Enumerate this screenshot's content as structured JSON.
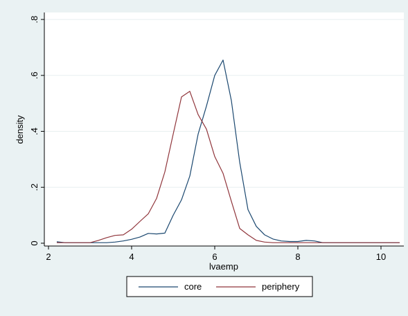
{
  "chart_data": {
    "type": "line",
    "title": "",
    "xlabel": "lvaemp",
    "ylabel": "density",
    "xlim": [
      1.9,
      10.55
    ],
    "ylim": [
      -0.01,
      0.825
    ],
    "xticks": [
      2,
      4,
      6,
      8,
      10
    ],
    "xtick_labels": [
      "2",
      "4",
      "6",
      "8",
      "10"
    ],
    "yticks": [
      0,
      0.2,
      0.4,
      0.6,
      0.8
    ],
    "ytick_labels": [
      "0",
      ".2",
      ".4",
      ".6",
      ".8"
    ],
    "grid": "horizontal",
    "legend_position": "bottom",
    "colors": {
      "background": "#eaf2f3",
      "plot_area": "#ffffff",
      "grid": "#e8eff0"
    },
    "series": [
      {
        "name": "core",
        "color": "#1a476f",
        "x": [
          2.2,
          2.4,
          2.6,
          2.8,
          3.0,
          3.2,
          3.4,
          3.6,
          3.8,
          4.0,
          4.2,
          4.4,
          4.6,
          4.8,
          5.0,
          5.2,
          5.4,
          5.6,
          5.8,
          6.0,
          6.2,
          6.4,
          6.6,
          6.8,
          7.0,
          7.2,
          7.4,
          7.6,
          7.8,
          8.0,
          8.2,
          8.4,
          8.6,
          8.8,
          9.0,
          9.2,
          9.4,
          9.6,
          9.8,
          10.0,
          10.2,
          10.45
        ],
        "y": [
          0.005,
          0.002,
          0.002,
          0.002,
          0.002,
          0.002,
          0.002,
          0.004,
          0.008,
          0.014,
          0.022,
          0.035,
          0.033,
          0.036,
          0.1,
          0.155,
          0.24,
          0.39,
          0.49,
          0.6,
          0.655,
          0.51,
          0.29,
          0.12,
          0.06,
          0.03,
          0.015,
          0.008,
          0.006,
          0.006,
          0.01,
          0.008,
          0.002,
          0.002,
          0.002,
          0.002,
          0.002,
          0.002,
          0.002,
          0.002,
          0.002,
          0.002
        ]
      },
      {
        "name": "periphery",
        "color": "#90353b",
        "x": [
          2.2,
          2.4,
          2.6,
          2.8,
          3.0,
          3.2,
          3.4,
          3.6,
          3.8,
          4.0,
          4.2,
          4.4,
          4.6,
          4.8,
          5.0,
          5.2,
          5.4,
          5.6,
          5.8,
          6.0,
          6.2,
          6.4,
          6.6,
          6.8,
          7.0,
          7.2,
          7.4,
          7.6,
          7.8,
          8.0,
          8.2,
          8.4,
          8.6,
          8.8,
          9.0,
          9.2,
          9.4,
          9.6,
          9.8,
          10.0,
          10.2,
          10.45
        ],
        "y": [
          0.002,
          0.002,
          0.002,
          0.002,
          0.002,
          0.01,
          0.02,
          0.028,
          0.03,
          0.05,
          0.078,
          0.105,
          0.16,
          0.255,
          0.39,
          0.523,
          0.543,
          0.46,
          0.408,
          0.31,
          0.25,
          0.15,
          0.053,
          0.03,
          0.01,
          0.004,
          0.002,
          0.002,
          0.002,
          0.002,
          0.002,
          0.002,
          0.002,
          0.002,
          0.002,
          0.002,
          0.002,
          0.002,
          0.002,
          0.002,
          0.002,
          0.002
        ]
      }
    ]
  }
}
